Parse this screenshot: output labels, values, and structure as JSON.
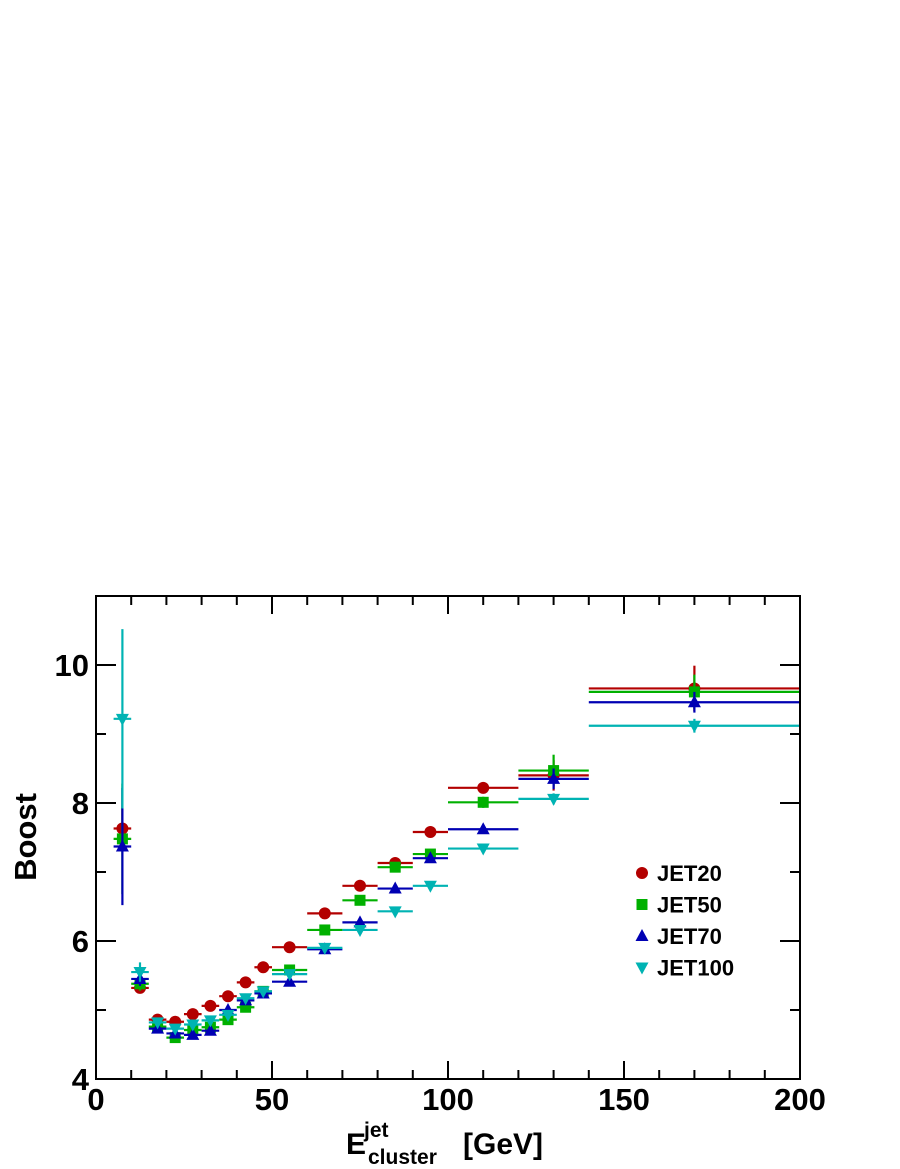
{
  "chart_data": {
    "type": "scatter",
    "xlabel_main": "E",
    "xlabel_sup": "jet",
    "xlabel_sub": "cluster",
    "xlabel_unit": "[GeV]",
    "ylabel": "Boost",
    "xlim": [
      0,
      200
    ],
    "ylim": [
      4,
      11
    ],
    "x_ticks": [
      "0",
      "50",
      "100",
      "150",
      "200"
    ],
    "y_ticks": [
      "4",
      "6",
      "8",
      "10"
    ],
    "grid": false,
    "legend_placement": "center-right",
    "series": [
      {
        "name": "JET20",
        "marker": "circle",
        "color": "#b30000",
        "points": [
          {
            "x": 7.5,
            "xerr": 2.5,
            "y": 7.63,
            "yerr": 0.3
          },
          {
            "x": 12.5,
            "xerr": 2.5,
            "y": 5.32,
            "yerr": 0.07
          },
          {
            "x": 17.5,
            "xerr": 2.5,
            "y": 4.86,
            "yerr": 0.03
          },
          {
            "x": 22.5,
            "xerr": 2.5,
            "y": 4.83,
            "yerr": 0.02
          },
          {
            "x": 27.5,
            "xerr": 2.5,
            "y": 4.94,
            "yerr": 0.02
          },
          {
            "x": 32.5,
            "xerr": 2.5,
            "y": 5.06,
            "yerr": 0.02
          },
          {
            "x": 37.5,
            "xerr": 2.5,
            "y": 5.2,
            "yerr": 0.02
          },
          {
            "x": 42.5,
            "xerr": 2.5,
            "y": 5.4,
            "yerr": 0.02
          },
          {
            "x": 47.5,
            "xerr": 2.5,
            "y": 5.62,
            "yerr": 0.02
          },
          {
            "x": 55,
            "xerr": 5,
            "y": 5.91,
            "yerr": 0.02
          },
          {
            "x": 65,
            "xerr": 5,
            "y": 6.4,
            "yerr": 0.03
          },
          {
            "x": 75,
            "xerr": 5,
            "y": 6.8,
            "yerr": 0.03
          },
          {
            "x": 85,
            "xerr": 5,
            "y": 7.13,
            "yerr": 0.03
          },
          {
            "x": 95,
            "xerr": 5,
            "y": 7.58,
            "yerr": 0.04
          },
          {
            "x": 110,
            "xerr": 10,
            "y": 8.22,
            "yerr": 0.07
          },
          {
            "x": 130,
            "xerr": 10,
            "y": 8.4,
            "yerr": 0.22
          },
          {
            "x": 170,
            "xerr": 30,
            "y": 9.66,
            "yerr": 0.33
          }
        ]
      },
      {
        "name": "JET50",
        "marker": "square",
        "color": "#00b000",
        "points": [
          {
            "x": 7.5,
            "xerr": 2.5,
            "y": 7.48,
            "yerr": 0.8
          },
          {
            "x": 12.5,
            "xerr": 2.5,
            "y": 5.38,
            "yerr": 0.1
          },
          {
            "x": 17.5,
            "xerr": 2.5,
            "y": 4.76,
            "yerr": 0.04
          },
          {
            "x": 22.5,
            "xerr": 2.5,
            "y": 4.6,
            "yerr": 0.03
          },
          {
            "x": 27.5,
            "xerr": 2.5,
            "y": 4.71,
            "yerr": 0.03
          },
          {
            "x": 32.5,
            "xerr": 2.5,
            "y": 4.75,
            "yerr": 0.03
          },
          {
            "x": 37.5,
            "xerr": 2.5,
            "y": 4.86,
            "yerr": 0.03
          },
          {
            "x": 42.5,
            "xerr": 2.5,
            "y": 5.04,
            "yerr": 0.03
          },
          {
            "x": 47.5,
            "xerr": 2.5,
            "y": 5.27,
            "yerr": 0.03
          },
          {
            "x": 55,
            "xerr": 5,
            "y": 5.58,
            "yerr": 0.03
          },
          {
            "x": 65,
            "xerr": 5,
            "y": 6.16,
            "yerr": 0.03
          },
          {
            "x": 75,
            "xerr": 5,
            "y": 6.59,
            "yerr": 0.03
          },
          {
            "x": 85,
            "xerr": 5,
            "y": 7.07,
            "yerr": 0.04
          },
          {
            "x": 95,
            "xerr": 5,
            "y": 7.26,
            "yerr": 0.05
          },
          {
            "x": 110,
            "xerr": 10,
            "y": 8.01,
            "yerr": 0.08
          },
          {
            "x": 130,
            "xerr": 10,
            "y": 8.47,
            "yerr": 0.23
          },
          {
            "x": 170,
            "xerr": 30,
            "y": 9.61,
            "yerr": 0.25
          }
        ]
      },
      {
        "name": "JET70",
        "marker": "triangle-up",
        "color": "#0000b3",
        "points": [
          {
            "x": 7.5,
            "xerr": 2.5,
            "y": 7.37,
            "yerr": 0.85
          },
          {
            "x": 12.5,
            "xerr": 2.5,
            "y": 5.45,
            "yerr": 0.1
          },
          {
            "x": 17.5,
            "xerr": 2.5,
            "y": 4.73,
            "yerr": 0.04
          },
          {
            "x": 22.5,
            "xerr": 2.5,
            "y": 4.66,
            "yerr": 0.03
          },
          {
            "x": 27.5,
            "xerr": 2.5,
            "y": 4.64,
            "yerr": 0.03
          },
          {
            "x": 32.5,
            "xerr": 2.5,
            "y": 4.7,
            "yerr": 0.03
          },
          {
            "x": 37.5,
            "xerr": 2.5,
            "y": 5.0,
            "yerr": 0.03
          },
          {
            "x": 42.5,
            "xerr": 2.5,
            "y": 5.14,
            "yerr": 0.03
          },
          {
            "x": 47.5,
            "xerr": 2.5,
            "y": 5.24,
            "yerr": 0.03
          },
          {
            "x": 55,
            "xerr": 5,
            "y": 5.41,
            "yerr": 0.03
          },
          {
            "x": 65,
            "xerr": 5,
            "y": 5.88,
            "yerr": 0.03
          },
          {
            "x": 75,
            "xerr": 5,
            "y": 6.27,
            "yerr": 0.03
          },
          {
            "x": 85,
            "xerr": 5,
            "y": 6.76,
            "yerr": 0.04
          },
          {
            "x": 95,
            "xerr": 5,
            "y": 7.2,
            "yerr": 0.05
          },
          {
            "x": 110,
            "xerr": 10,
            "y": 7.62,
            "yerr": 0.06
          },
          {
            "x": 130,
            "xerr": 10,
            "y": 8.35,
            "yerr": 0.15
          },
          {
            "x": 170,
            "xerr": 30,
            "y": 9.46,
            "yerr": 0.15
          }
        ]
      },
      {
        "name": "JET100",
        "marker": "triangle-down",
        "color": "#00b3b3",
        "points": [
          {
            "x": 7.5,
            "xerr": 2.5,
            "y": 9.22,
            "yerr": 1.3
          },
          {
            "x": 12.5,
            "xerr": 2.5,
            "y": 5.55,
            "yerr": 0.14
          },
          {
            "x": 17.5,
            "xerr": 2.5,
            "y": 4.82,
            "yerr": 0.05
          },
          {
            "x": 22.5,
            "xerr": 2.5,
            "y": 4.73,
            "yerr": 0.04
          },
          {
            "x": 27.5,
            "xerr": 2.5,
            "y": 4.79,
            "yerr": 0.03
          },
          {
            "x": 32.5,
            "xerr": 2.5,
            "y": 4.85,
            "yerr": 0.03
          },
          {
            "x": 37.5,
            "xerr": 2.5,
            "y": 4.93,
            "yerr": 0.03
          },
          {
            "x": 42.5,
            "xerr": 2.5,
            "y": 5.17,
            "yerr": 0.03
          },
          {
            "x": 47.5,
            "xerr": 2.5,
            "y": 5.27,
            "yerr": 0.03
          },
          {
            "x": 55,
            "xerr": 5,
            "y": 5.52,
            "yerr": 0.03
          },
          {
            "x": 65,
            "xerr": 5,
            "y": 5.9,
            "yerr": 0.03
          },
          {
            "x": 75,
            "xerr": 5,
            "y": 6.16,
            "yerr": 0.03
          },
          {
            "x": 85,
            "xerr": 5,
            "y": 6.43,
            "yerr": 0.04
          },
          {
            "x": 95,
            "xerr": 5,
            "y": 6.8,
            "yerr": 0.04
          },
          {
            "x": 110,
            "xerr": 10,
            "y": 7.34,
            "yerr": 0.05
          },
          {
            "x": 130,
            "xerr": 10,
            "y": 8.06,
            "yerr": 0.08
          },
          {
            "x": 170,
            "xerr": 30,
            "y": 9.12,
            "yerr": 0.1
          }
        ]
      }
    ]
  }
}
